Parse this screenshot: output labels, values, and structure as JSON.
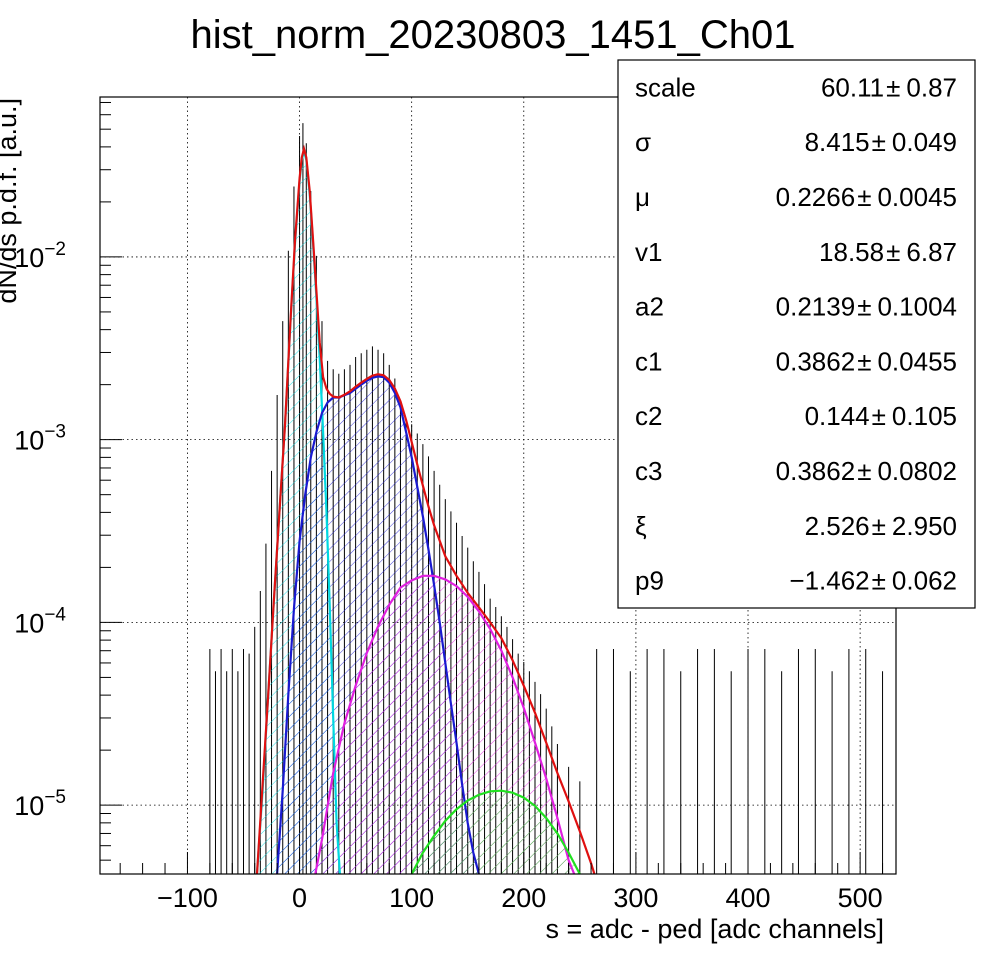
{
  "chart_data": {
    "type": "line",
    "title": "hist_norm_20230803_1451_Ch01",
    "xlabel": "s = adc - ped [adc channels]",
    "ylabel": "dN/ds p.d.f. [a.u.]",
    "xlim": [
      -178,
      532
    ],
    "ylim": [
      4.2e-06,
      0.075
    ],
    "y_scale": "log",
    "grid": true,
    "x_ticks": [
      {
        "value": -100,
        "label": "−100"
      },
      {
        "value": 0,
        "label": "0"
      },
      {
        "value": 100,
        "label": "100"
      },
      {
        "value": 200,
        "label": "200"
      },
      {
        "value": 300,
        "label": "300"
      },
      {
        "value": 400,
        "label": "400"
      },
      {
        "value": 500,
        "label": "500"
      }
    ],
    "y_ticks": [
      {
        "value": 1e-05,
        "base": "10",
        "exp": "−5"
      },
      {
        "value": 0.0001,
        "base": "10",
        "exp": "−4"
      },
      {
        "value": 0.001,
        "base": "10",
        "exp": "−3"
      },
      {
        "value": 0.01,
        "base": "10",
        "exp": "−2"
      }
    ],
    "histogram": {
      "color": "#000000",
      "points": [
        [
          -80,
          5.3e-05
        ],
        [
          -75,
          4e-05
        ],
        [
          -70,
          5.3e-05
        ],
        [
          -65,
          4e-05
        ],
        [
          -60,
          5.3e-05
        ],
        [
          -55,
          4e-05
        ],
        [
          -50,
          5.3e-05
        ],
        [
          -45,
          5e-05
        ],
        [
          -40,
          7e-05
        ],
        [
          -35,
          0.00011
        ],
        [
          -30,
          0.0002
        ],
        [
          -25,
          0.0005
        ],
        [
          -20,
          0.0013
        ],
        [
          -15,
          0.0033
        ],
        [
          -10,
          0.008
        ],
        [
          -5,
          0.018
        ],
        [
          0,
          0.034
        ],
        [
          3,
          0.04
        ],
        [
          6,
          0.031
        ],
        [
          10,
          0.017
        ],
        [
          15,
          0.0075
        ],
        [
          20,
          0.0033
        ],
        [
          25,
          0.002
        ],
        [
          30,
          0.0018
        ],
        [
          35,
          0.0017
        ],
        [
          40,
          0.0018
        ],
        [
          45,
          0.0019
        ],
        [
          50,
          0.0021
        ],
        [
          55,
          0.0022
        ],
        [
          60,
          0.0023
        ],
        [
          65,
          0.0024
        ],
        [
          70,
          0.0023
        ],
        [
          75,
          0.0022
        ],
        [
          80,
          0.0019
        ],
        [
          85,
          0.0016
        ],
        [
          90,
          0.0012
        ],
        [
          95,
          0.00095
        ],
        [
          100,
          0.0009
        ],
        [
          105,
          0.0008
        ],
        [
          110,
          0.0007
        ],
        [
          115,
          0.0006
        ],
        [
          120,
          0.0005
        ],
        [
          125,
          0.00042
        ],
        [
          130,
          0.00035
        ],
        [
          135,
          0.0003
        ],
        [
          140,
          0.00026
        ],
        [
          145,
          0.00022
        ],
        [
          150,
          0.00019
        ],
        [
          155,
          0.00016
        ],
        [
          160,
          0.00014
        ],
        [
          165,
          0.00012
        ],
        [
          170,
          0.0001
        ],
        [
          175,
          9e-05
        ],
        [
          180,
          8e-05
        ],
        [
          185,
          7e-05
        ],
        [
          190,
          6e-05
        ],
        [
          195,
          5e-05
        ],
        [
          200,
          4.5e-05
        ],
        [
          205,
          4e-05
        ],
        [
          210,
          3.5e-05
        ],
        [
          215,
          3e-05
        ],
        [
          220,
          2.5e-05
        ],
        [
          225,
          2e-05
        ],
        [
          230,
          1.6e-05
        ],
        [
          240,
          1.2e-05
        ],
        [
          250,
          1e-05
        ],
        [
          265,
          5.3e-05
        ],
        [
          280,
          5.3e-05
        ],
        [
          295,
          4e-05
        ],
        [
          310,
          5.3e-05
        ],
        [
          325,
          5.3e-05
        ],
        [
          340,
          4e-05
        ],
        [
          355,
          5.3e-05
        ],
        [
          370,
          5.3e-05
        ],
        [
          385,
          4e-05
        ],
        [
          400,
          5.3e-05
        ],
        [
          415,
          5.3e-05
        ],
        [
          430,
          4e-05
        ],
        [
          445,
          5.3e-05
        ],
        [
          460,
          5.3e-05
        ],
        [
          475,
          4e-05
        ],
        [
          490,
          5.3e-05
        ],
        [
          505,
          5.3e-05
        ],
        [
          520,
          4e-05
        ]
      ]
    },
    "series": [
      {
        "color": "#00d8e0",
        "fill": "hatch",
        "points": [
          [
            -38,
            4.2e-06
          ],
          [
            -33,
            1.2e-05
          ],
          [
            -28,
            4e-05
          ],
          [
            -23,
            0.00013
          ],
          [
            -18,
            0.0004
          ],
          [
            -13,
            0.0012
          ],
          [
            -8,
            0.0045
          ],
          [
            -4,
            0.012
          ],
          [
            0,
            0.026
          ],
          [
            2,
            0.034
          ],
          [
            4,
            0.038
          ],
          [
            6,
            0.034
          ],
          [
            9,
            0.022
          ],
          [
            12,
            0.012
          ],
          [
            15,
            0.006
          ],
          [
            18,
            0.0028
          ],
          [
            21,
            0.0011
          ],
          [
            24,
            0.0004
          ],
          [
            27,
            0.00012
          ],
          [
            30,
            3e-05
          ],
          [
            33,
            8e-06
          ],
          [
            36,
            4.2e-06
          ]
        ]
      },
      {
        "color": "#1a1ad0",
        "fill": "hatch",
        "points": [
          [
            -20,
            4.2e-06
          ],
          [
            -15,
            1.2e-05
          ],
          [
            -10,
            4e-05
          ],
          [
            -5,
            0.00012
          ],
          [
            0,
            0.00028
          ],
          [
            5,
            0.0005
          ],
          [
            10,
            0.0008
          ],
          [
            15,
            0.0011
          ],
          [
            20,
            0.0014
          ],
          [
            25,
            0.0016
          ],
          [
            30,
            0.0017
          ],
          [
            35,
            0.0017
          ],
          [
            40,
            0.00175
          ],
          [
            45,
            0.0018
          ],
          [
            50,
            0.0019
          ],
          [
            55,
            0.002
          ],
          [
            60,
            0.0021
          ],
          [
            65,
            0.00218
          ],
          [
            70,
            0.00222
          ],
          [
            75,
            0.0022
          ],
          [
            80,
            0.00205
          ],
          [
            85,
            0.0018
          ],
          [
            90,
            0.0015
          ],
          [
            95,
            0.0011
          ],
          [
            100,
            0.0008
          ],
          [
            105,
            0.00055
          ],
          [
            110,
            0.00038
          ],
          [
            115,
            0.00025
          ],
          [
            120,
            0.00016
          ],
          [
            125,
            0.0001
          ],
          [
            130,
            6e-05
          ],
          [
            135,
            3.6e-05
          ],
          [
            140,
            2.2e-05
          ],
          [
            145,
            1.3e-05
          ],
          [
            150,
            8e-06
          ],
          [
            155,
            5.5e-06
          ],
          [
            160,
            4.2e-06
          ]
        ]
      },
      {
        "color": "#e020e0",
        "fill": "hatch",
        "points": [
          [
            14,
            4.2e-06
          ],
          [
            20,
            6.5e-06
          ],
          [
            30,
            1.5e-05
          ],
          [
            40,
            2.8e-05
          ],
          [
            50,
            4.5e-05
          ],
          [
            60,
            6.8e-05
          ],
          [
            70,
            9.5e-05
          ],
          [
            80,
            0.000125
          ],
          [
            90,
            0.000155
          ],
          [
            100,
            0.00017
          ],
          [
            110,
            0.00018
          ],
          [
            120,
            0.00018
          ],
          [
            130,
            0.000172
          ],
          [
            140,
            0.000158
          ],
          [
            150,
            0.000138
          ],
          [
            160,
            0.000115
          ],
          [
            170,
            9.2e-05
          ],
          [
            180,
            7e-05
          ],
          [
            190,
            5e-05
          ],
          [
            200,
            3.4e-05
          ],
          [
            210,
            2.2e-05
          ],
          [
            220,
            1.4e-05
          ],
          [
            230,
            8.5e-06
          ],
          [
            240,
            5e-06
          ],
          [
            245,
            4.2e-06
          ]
        ]
      },
      {
        "color": "#20e020",
        "fill": "hatch",
        "points": [
          [
            100,
            4.2e-06
          ],
          [
            110,
            5.5e-06
          ],
          [
            120,
            6.8e-06
          ],
          [
            130,
            8.2e-06
          ],
          [
            140,
            9.5e-06
          ],
          [
            150,
            1.06e-05
          ],
          [
            160,
            1.14e-05
          ],
          [
            170,
            1.19e-05
          ],
          [
            180,
            1.2e-05
          ],
          [
            190,
            1.17e-05
          ],
          [
            200,
            1.1e-05
          ],
          [
            210,
            9.9e-06
          ],
          [
            220,
            8.5e-06
          ],
          [
            230,
            7e-06
          ],
          [
            240,
            5.5e-06
          ],
          [
            250,
            4.2e-06
          ]
        ]
      },
      {
        "color": "#e01010",
        "fill": "none",
        "points": [
          [
            -38,
            4.2e-06
          ],
          [
            -33,
            1.3e-05
          ],
          [
            -28,
            4e-05
          ],
          [
            -23,
            0.00013
          ],
          [
            -18,
            0.0004
          ],
          [
            -13,
            0.0012
          ],
          [
            -8,
            0.0046
          ],
          [
            -4,
            0.0125
          ],
          [
            0,
            0.027
          ],
          [
            2,
            0.035
          ],
          [
            4,
            0.039
          ],
          [
            6,
            0.035
          ],
          [
            9,
            0.023
          ],
          [
            12,
            0.0125
          ],
          [
            15,
            0.0065
          ],
          [
            18,
            0.0034
          ],
          [
            21,
            0.0022
          ],
          [
            24,
            0.0019
          ],
          [
            27,
            0.00178
          ],
          [
            30,
            0.00172
          ],
          [
            35,
            0.0017
          ],
          [
            40,
            0.00176
          ],
          [
            45,
            0.00184
          ],
          [
            50,
            0.00195
          ],
          [
            55,
            0.00205
          ],
          [
            60,
            0.00215
          ],
          [
            65,
            0.00224
          ],
          [
            70,
            0.00228
          ],
          [
            75,
            0.00225
          ],
          [
            80,
            0.00212
          ],
          [
            85,
            0.0019
          ],
          [
            90,
            0.00162
          ],
          [
            95,
            0.00128
          ],
          [
            100,
            0.00097
          ],
          [
            105,
            0.00073
          ],
          [
            110,
            0.00056
          ],
          [
            115,
            0.00043
          ],
          [
            120,
            0.00034
          ],
          [
            125,
            0.00028
          ],
          [
            130,
            0.00023
          ],
          [
            140,
            0.00018
          ],
          [
            150,
            0.000145
          ],
          [
            160,
            0.000121
          ],
          [
            170,
            0.0001
          ],
          [
            180,
            8.2e-05
          ],
          [
            190,
            6.2e-05
          ],
          [
            200,
            4.5e-05
          ],
          [
            210,
            3.2e-05
          ],
          [
            220,
            2.2e-05
          ],
          [
            230,
            1.5e-05
          ],
          [
            240,
            1.05e-05
          ],
          [
            250,
            7.2e-06
          ],
          [
            260,
            4.8e-06
          ],
          [
            263,
            4.2e-06
          ]
        ]
      }
    ],
    "stats": [
      {
        "name": "scale",
        "value": "60.11",
        "error": "0.87"
      },
      {
        "name": "σ",
        "value": "8.415",
        "error": "0.049"
      },
      {
        "name": "μ",
        "value": "0.2266",
        "error": "0.0045"
      },
      {
        "name": "v1",
        "value": "18.58",
        "error": "6.87"
      },
      {
        "name": "a2",
        "value": "0.2139",
        "error": "0.1004"
      },
      {
        "name": "c1",
        "value": "0.3862",
        "error": "0.0455"
      },
      {
        "name": "c2",
        "value": "0.144",
        "error": "0.105"
      },
      {
        "name": "c3",
        "value": "0.3862",
        "error": "0.0802"
      },
      {
        "name": "ξ",
        "value": "2.526",
        "error": "2.950"
      },
      {
        "name": "p9",
        "value": "−1.462",
        "error": "0.062"
      }
    ],
    "pm_symbol": "±"
  }
}
